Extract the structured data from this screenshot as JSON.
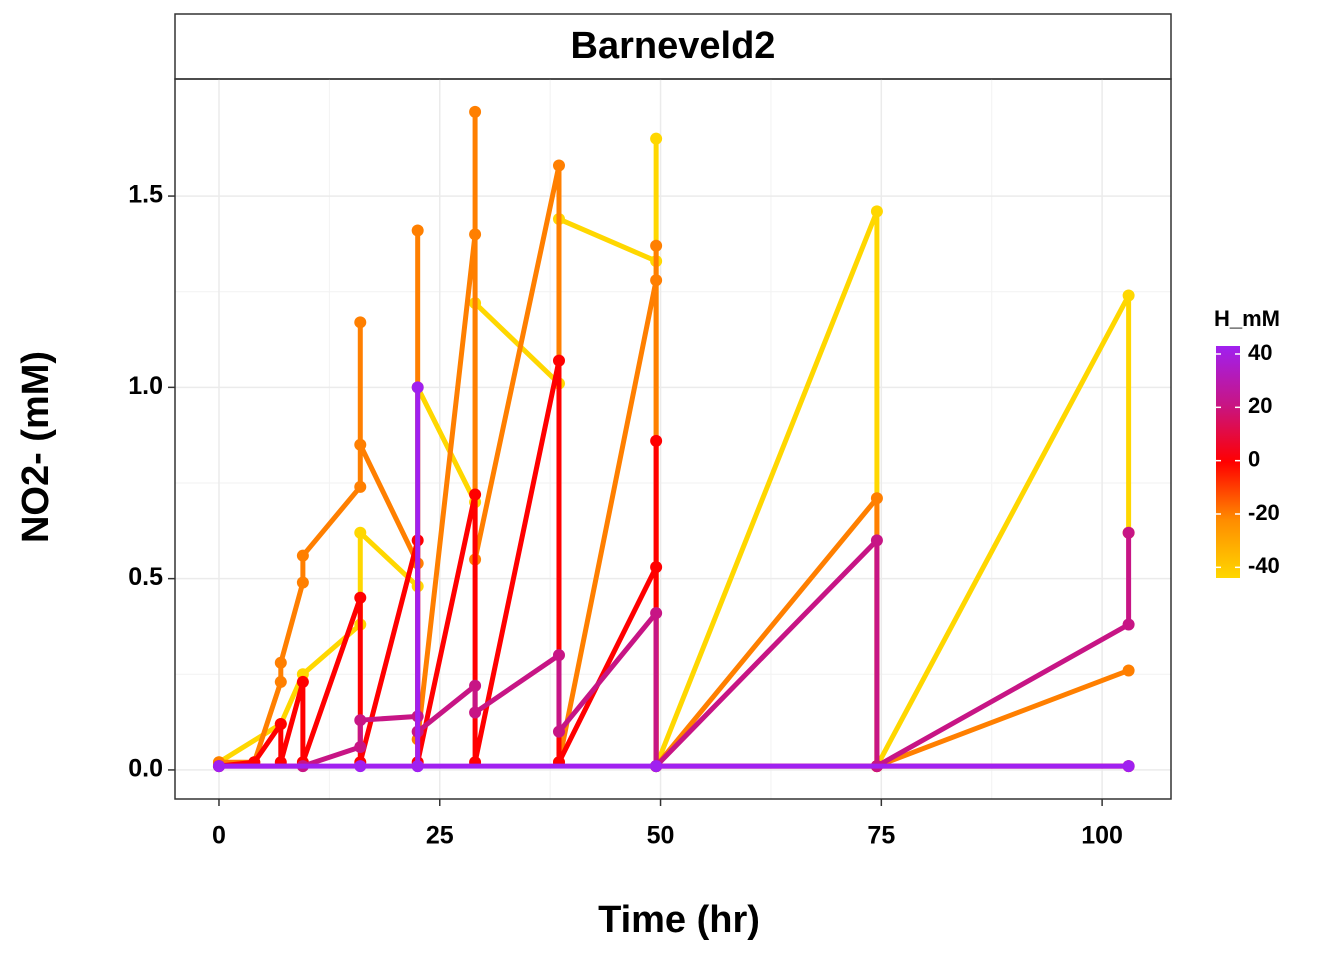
{
  "chart_data": {
    "type": "line",
    "strip_title": "Barneveld2",
    "x_label": "Time (hr)",
    "y_label": "NO2- (mM)",
    "xlim": [
      -4.98,
      107.8
    ],
    "ylim": [
      -0.076,
      1.806
    ],
    "xticks": [
      0,
      25,
      50,
      75,
      100
    ],
    "yticks": [
      {
        "value": 0,
        "label": "0.0"
      },
      0.5,
      {
        "value": 1,
        "label": "1.0"
      },
      1.5
    ],
    "grid": true,
    "series": [
      {
        "color": "#FFD700",
        "x": [
          0,
          7,
          9.5,
          16,
          16,
          22.5,
          22.5,
          29,
          29,
          38.5,
          38.5,
          49.5,
          49.5,
          49.5,
          74.5,
          74.5,
          103,
          103
        ],
        "values": [
          0.02,
          0.12,
          0.25,
          0.38,
          0.62,
          0.48,
          1.0,
          0.7,
          1.22,
          1.01,
          1.44,
          1.33,
          1.65,
          0.01,
          1.46,
          0.01,
          1.24,
          0.62
        ]
      },
      {
        "color": "#FF7F00",
        "x": [
          0,
          4,
          7,
          7,
          9.5,
          9.5,
          16,
          16,
          16,
          22.5,
          22.5,
          22.5,
          29,
          29,
          29,
          38.5,
          38.5,
          49.5,
          49.5,
          49.5,
          74.5,
          74.5,
          103
        ],
        "values": [
          0.02,
          0.02,
          0.23,
          0.28,
          0.49,
          0.56,
          0.74,
          1.17,
          0.85,
          0.54,
          1.41,
          0.08,
          1.4,
          1.72,
          0.55,
          1.58,
          0.02,
          1.28,
          1.37,
          0.01,
          0.71,
          0.01,
          0.26
        ]
      },
      {
        "color": "#FF0000",
        "x": [
          0,
          4,
          7,
          7,
          9.5,
          9.5,
          16,
          16,
          22.5,
          22.5,
          29,
          29,
          38.5,
          38.5,
          49.5,
          49.5,
          49.5,
          74.5,
          103
        ],
        "values": [
          0.01,
          0.02,
          0.12,
          0.02,
          0.23,
          0.02,
          0.45,
          0.02,
          0.6,
          0.02,
          0.72,
          0.02,
          1.07,
          0.02,
          0.53,
          0.86,
          0.01,
          0.01,
          0.01
        ]
      },
      {
        "color": "#C71585",
        "x": [
          0,
          9.5,
          16,
          16,
          22.5,
          22.5,
          29,
          29,
          38.5,
          38.5,
          49.5,
          49.5,
          74.5,
          74.5,
          103,
          103
        ],
        "values": [
          0.01,
          0.01,
          0.06,
          0.13,
          0.14,
          0.1,
          0.22,
          0.15,
          0.3,
          0.1,
          0.41,
          0.01,
          0.6,
          0.01,
          0.38,
          0.62
        ]
      },
      {
        "color": "#A020F0",
        "x": [
          0,
          16,
          22.5,
          22.5,
          22.5,
          49.5,
          103
        ],
        "values": [
          0.01,
          0.01,
          0.01,
          1.0,
          0.01,
          0.01,
          0.01
        ]
      }
    ],
    "legend": {
      "title": "H_mM",
      "lim": [
        -44,
        43
      ],
      "ticks": [
        -40,
        -20,
        0,
        20,
        40
      ],
      "colors": [
        "#FFD700",
        "#FF8C00",
        "#FF0000",
        "#C71585",
        "#A020F0"
      ]
    }
  }
}
